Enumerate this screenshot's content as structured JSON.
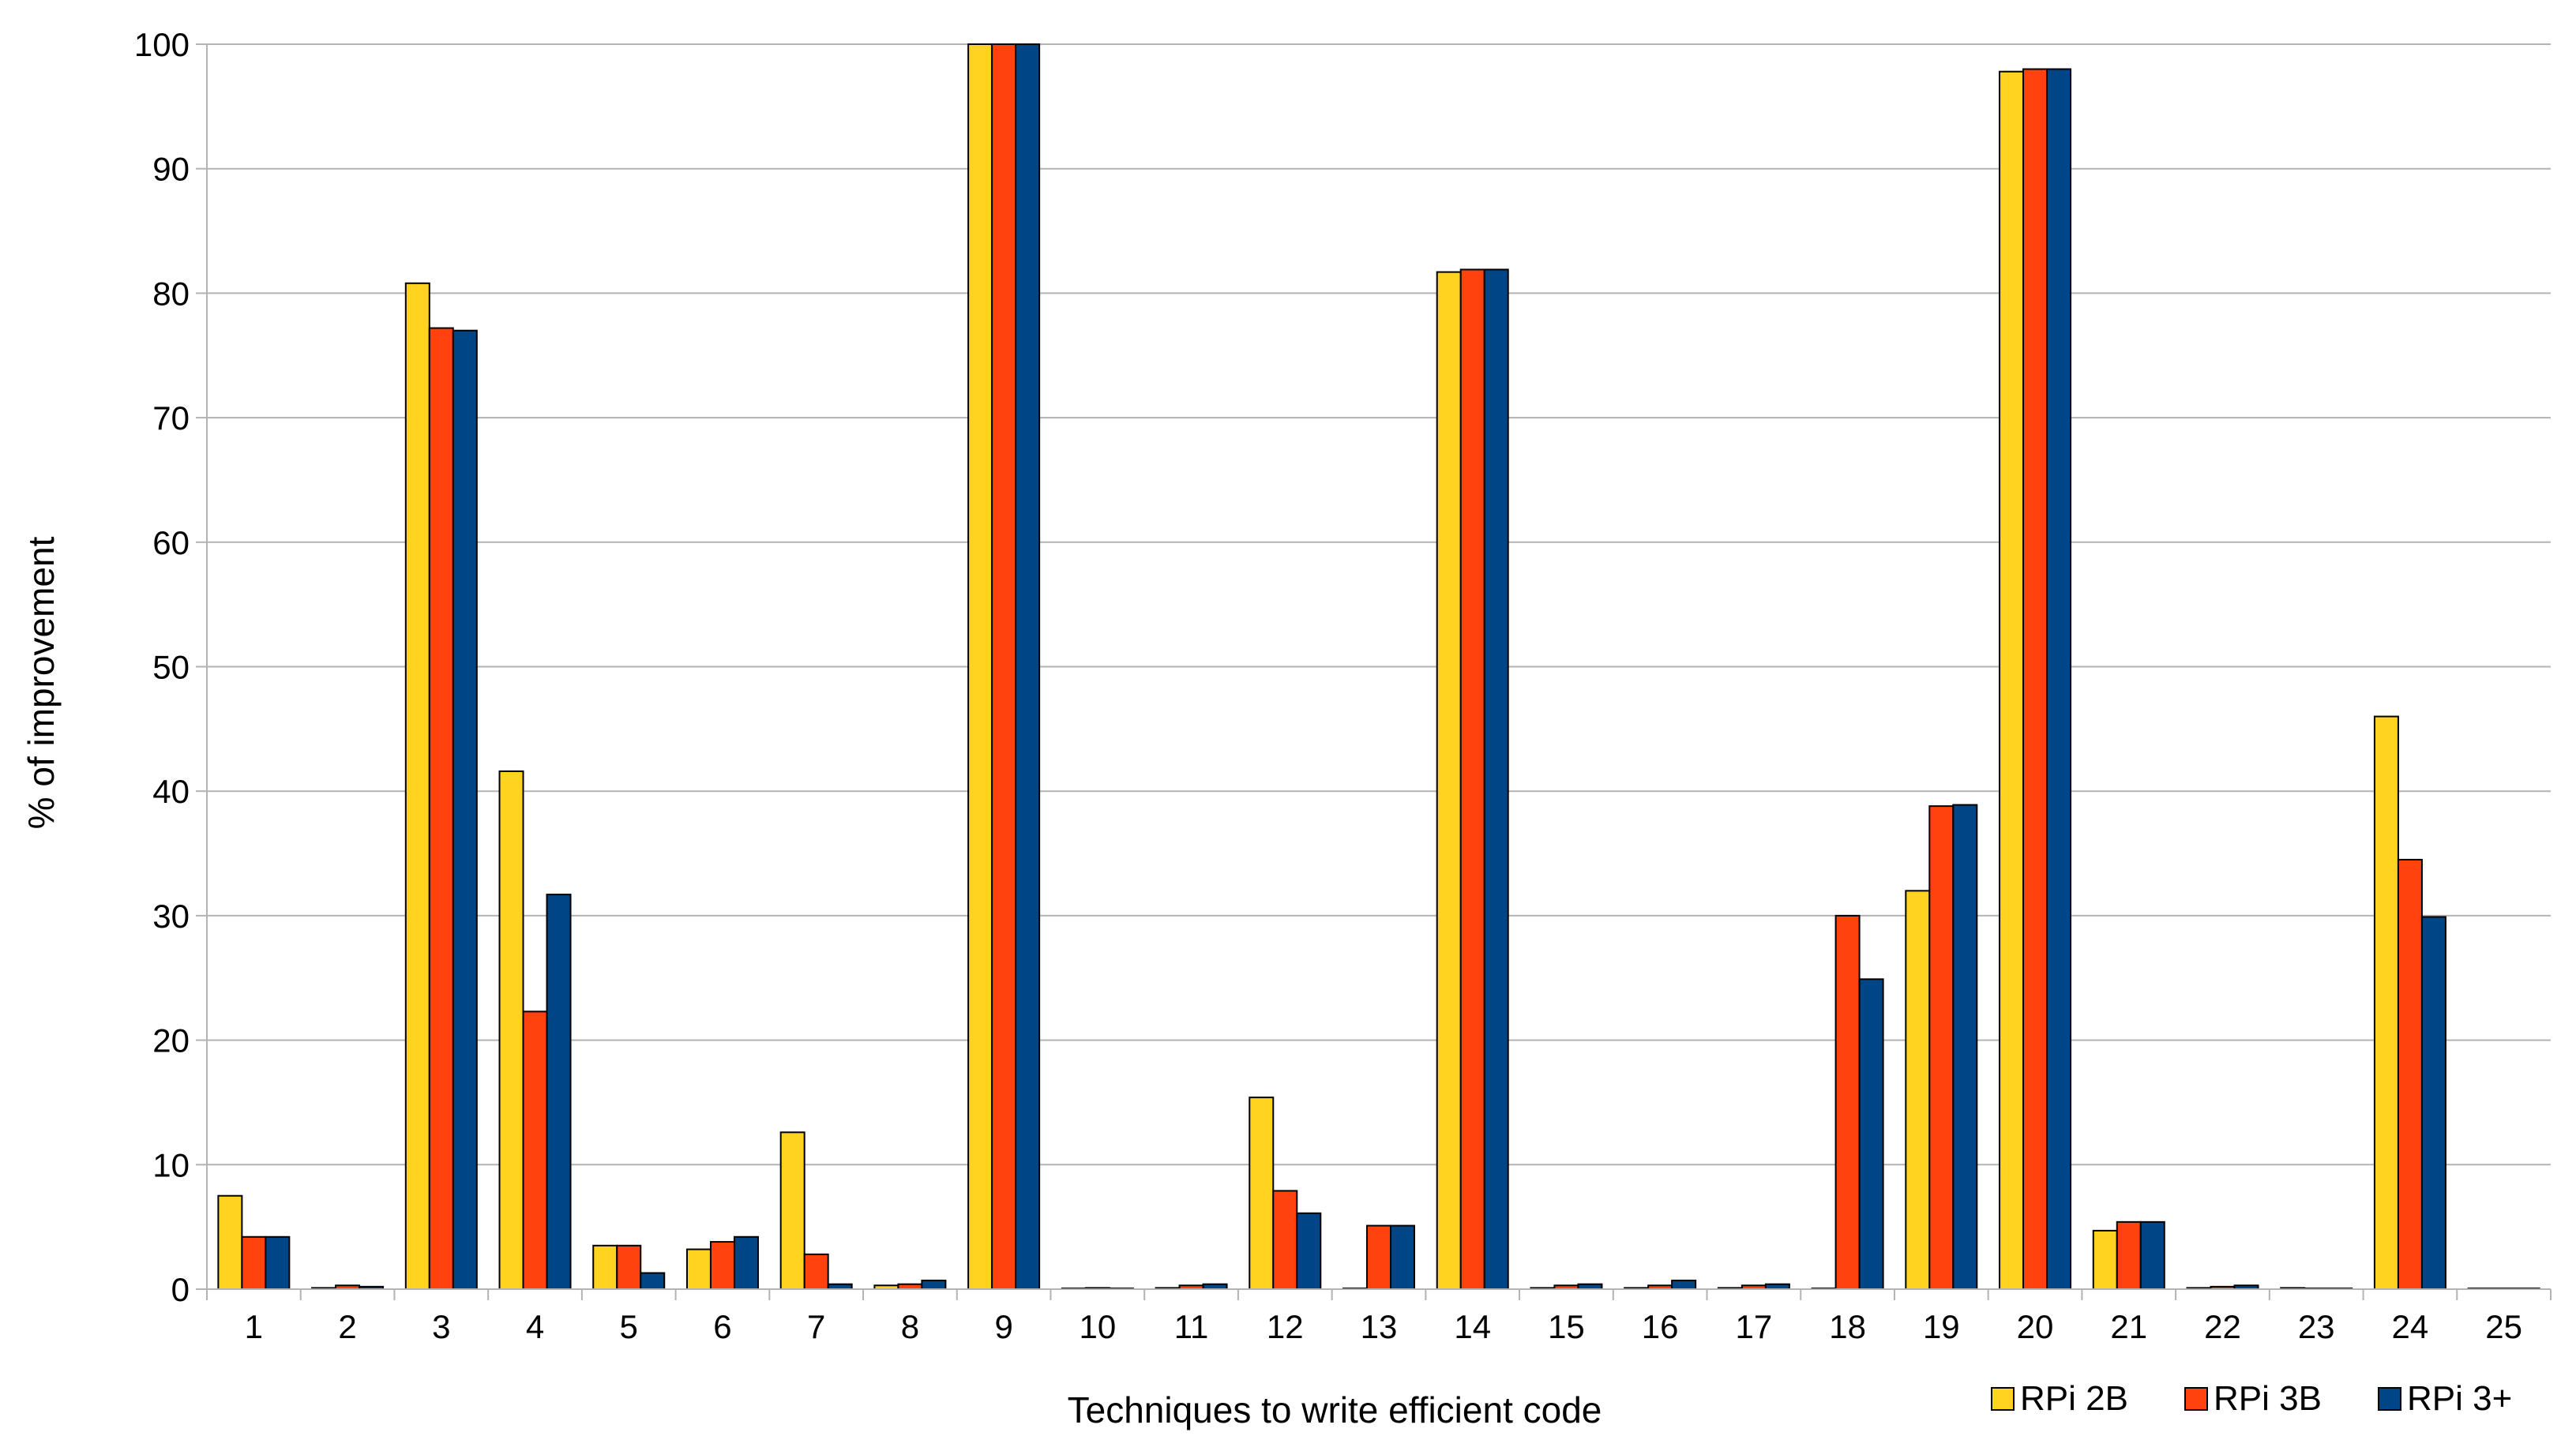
{
  "chart_data": {
    "type": "bar",
    "title": "",
    "xlabel": "Techniques to write efficient code",
    "ylabel": "% of improvement",
    "ylim": [
      0,
      100
    ],
    "yticks": [
      0,
      10,
      20,
      30,
      40,
      50,
      60,
      70,
      80,
      90,
      100
    ],
    "grid": true,
    "legend_position": "bottom-right",
    "categories": [
      "1",
      "2",
      "3",
      "4",
      "5",
      "6",
      "7",
      "8",
      "9",
      "10",
      "11",
      "12",
      "13",
      "14",
      "15",
      "16",
      "17",
      "18",
      "19",
      "20",
      "21",
      "22",
      "23",
      "24",
      "25"
    ],
    "series": [
      {
        "name": "RPi 2B",
        "color": "#ffd320",
        "values": [
          7.5,
          0.1,
          80.8,
          41.6,
          3.5,
          3.2,
          12.6,
          0.3,
          100,
          0,
          0.1,
          15.4,
          0,
          81.7,
          0.1,
          0.1,
          0.1,
          0,
          32.0,
          97.8,
          4.7,
          0.1,
          0.1,
          46.0,
          0
        ]
      },
      {
        "name": "RPi 3B",
        "color": "#ff420e",
        "values": [
          4.2,
          0.3,
          77.2,
          22.3,
          3.5,
          3.8,
          2.8,
          0.4,
          100,
          0.1,
          0.3,
          7.9,
          5.1,
          81.9,
          0.3,
          0.3,
          0.3,
          30.0,
          38.8,
          98.0,
          5.4,
          0.2,
          0.05,
          34.5,
          0.05
        ]
      },
      {
        "name": "RPi 3+",
        "color": "#004586",
        "values": [
          4.2,
          0.2,
          77.0,
          31.7,
          1.3,
          4.2,
          0.4,
          0.7,
          100,
          0,
          0.4,
          6.1,
          5.1,
          81.9,
          0.4,
          0.7,
          0.4,
          24.9,
          38.9,
          98.0,
          5.4,
          0.3,
          0,
          29.9,
          0.05
        ]
      }
    ]
  }
}
